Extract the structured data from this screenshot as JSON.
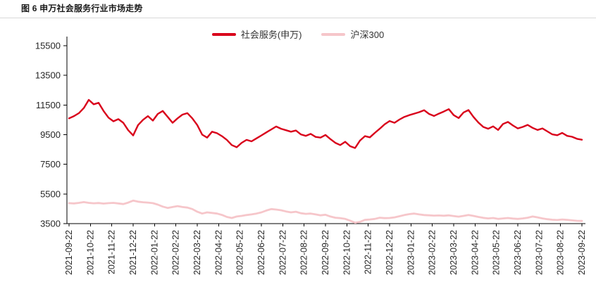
{
  "figure": {
    "title": "图 6 申万社会服务行业市场走势"
  },
  "chart_data": {
    "type": "line",
    "title": "申万社会服务行业市场走势",
    "xlabel": "",
    "ylabel": "",
    "ylim": [
      3500,
      15500
    ],
    "yticks": [
      3500,
      5500,
      7500,
      9500,
      11500,
      13500,
      15500
    ],
    "grid": false,
    "legend_position": "top-center",
    "x_start": "2021-09-22",
    "x_end": "2023-09-22",
    "x_frequency": "weekly",
    "xticklabels": [
      "2021-09-22",
      "2021-10-22",
      "2021-11-22",
      "2021-12-22",
      "2022-01-22",
      "2022-02-22",
      "2022-03-22",
      "2022-04-22",
      "2022-05-22",
      "2022-06-22",
      "2022-07-22",
      "2022-08-22",
      "2022-09-22",
      "2022-10-22",
      "2022-11-22",
      "2022-12-22",
      "2023-01-22",
      "2023-02-22",
      "2023-03-22",
      "2023-04-22",
      "2023-05-22",
      "2023-06-22",
      "2023-07-22",
      "2023-08-22",
      "2023-09-22"
    ],
    "series": [
      {
        "name": "社会服务(申万)",
        "color": "#d9001b",
        "width": 2.4,
        "values": [
          10600,
          10750,
          10950,
          11300,
          11850,
          11550,
          11650,
          11100,
          10650,
          10400,
          10550,
          10300,
          9800,
          9450,
          10150,
          10500,
          10750,
          10450,
          10900,
          11100,
          10700,
          10300,
          10600,
          10850,
          10950,
          10600,
          10150,
          9500,
          9300,
          9700,
          9600,
          9400,
          9150,
          8800,
          8650,
          8950,
          9150,
          9050,
          9250,
          9450,
          9650,
          9850,
          10050,
          9900,
          9800,
          9700,
          9780,
          9520,
          9420,
          9550,
          9350,
          9300,
          9480,
          9200,
          8950,
          8800,
          9020,
          8720,
          8600,
          9100,
          9400,
          9320,
          9620,
          9900,
          10200,
          10420,
          10300,
          10520,
          10700,
          10820,
          10920,
          11020,
          11150,
          10900,
          10760,
          10920,
          11060,
          11220,
          10820,
          10620,
          11000,
          11160,
          10700,
          10320,
          10020,
          9900,
          10060,
          9820,
          10220,
          10360,
          10120,
          9920,
          10020,
          10160,
          9960,
          9820,
          9920,
          9720,
          9520,
          9460,
          9620,
          9420,
          9360,
          9220,
          9160
        ]
      },
      {
        "name": "沪深300",
        "color": "#f6c6ca",
        "width": 2.8,
        "values": [
          4880,
          4860,
          4900,
          4950,
          4900,
          4870,
          4890,
          4850,
          4880,
          4900,
          4860,
          4820,
          4920,
          5050,
          4980,
          4940,
          4920,
          4880,
          4780,
          4650,
          4560,
          4620,
          4680,
          4620,
          4580,
          4480,
          4300,
          4180,
          4260,
          4220,
          4180,
          4090,
          3950,
          3880,
          3980,
          4020,
          4080,
          4120,
          4180,
          4260,
          4380,
          4480,
          4450,
          4400,
          4320,
          4260,
          4300,
          4200,
          4160,
          4180,
          4120,
          4060,
          4100,
          3980,
          3900,
          3870,
          3820,
          3700,
          3560,
          3620,
          3750,
          3780,
          3820,
          3900,
          3870,
          3880,
          3920,
          4000,
          4080,
          4140,
          4180,
          4120,
          4080,
          4060,
          4040,
          4050,
          4030,
          4060,
          4010,
          3970,
          4020,
          4080,
          4020,
          3950,
          3890,
          3850,
          3880,
          3820,
          3850,
          3880,
          3840,
          3820,
          3850,
          3900,
          3980,
          3920,
          3850,
          3800,
          3760,
          3740,
          3780,
          3750,
          3720,
          3690,
          3680
        ]
      }
    ]
  }
}
